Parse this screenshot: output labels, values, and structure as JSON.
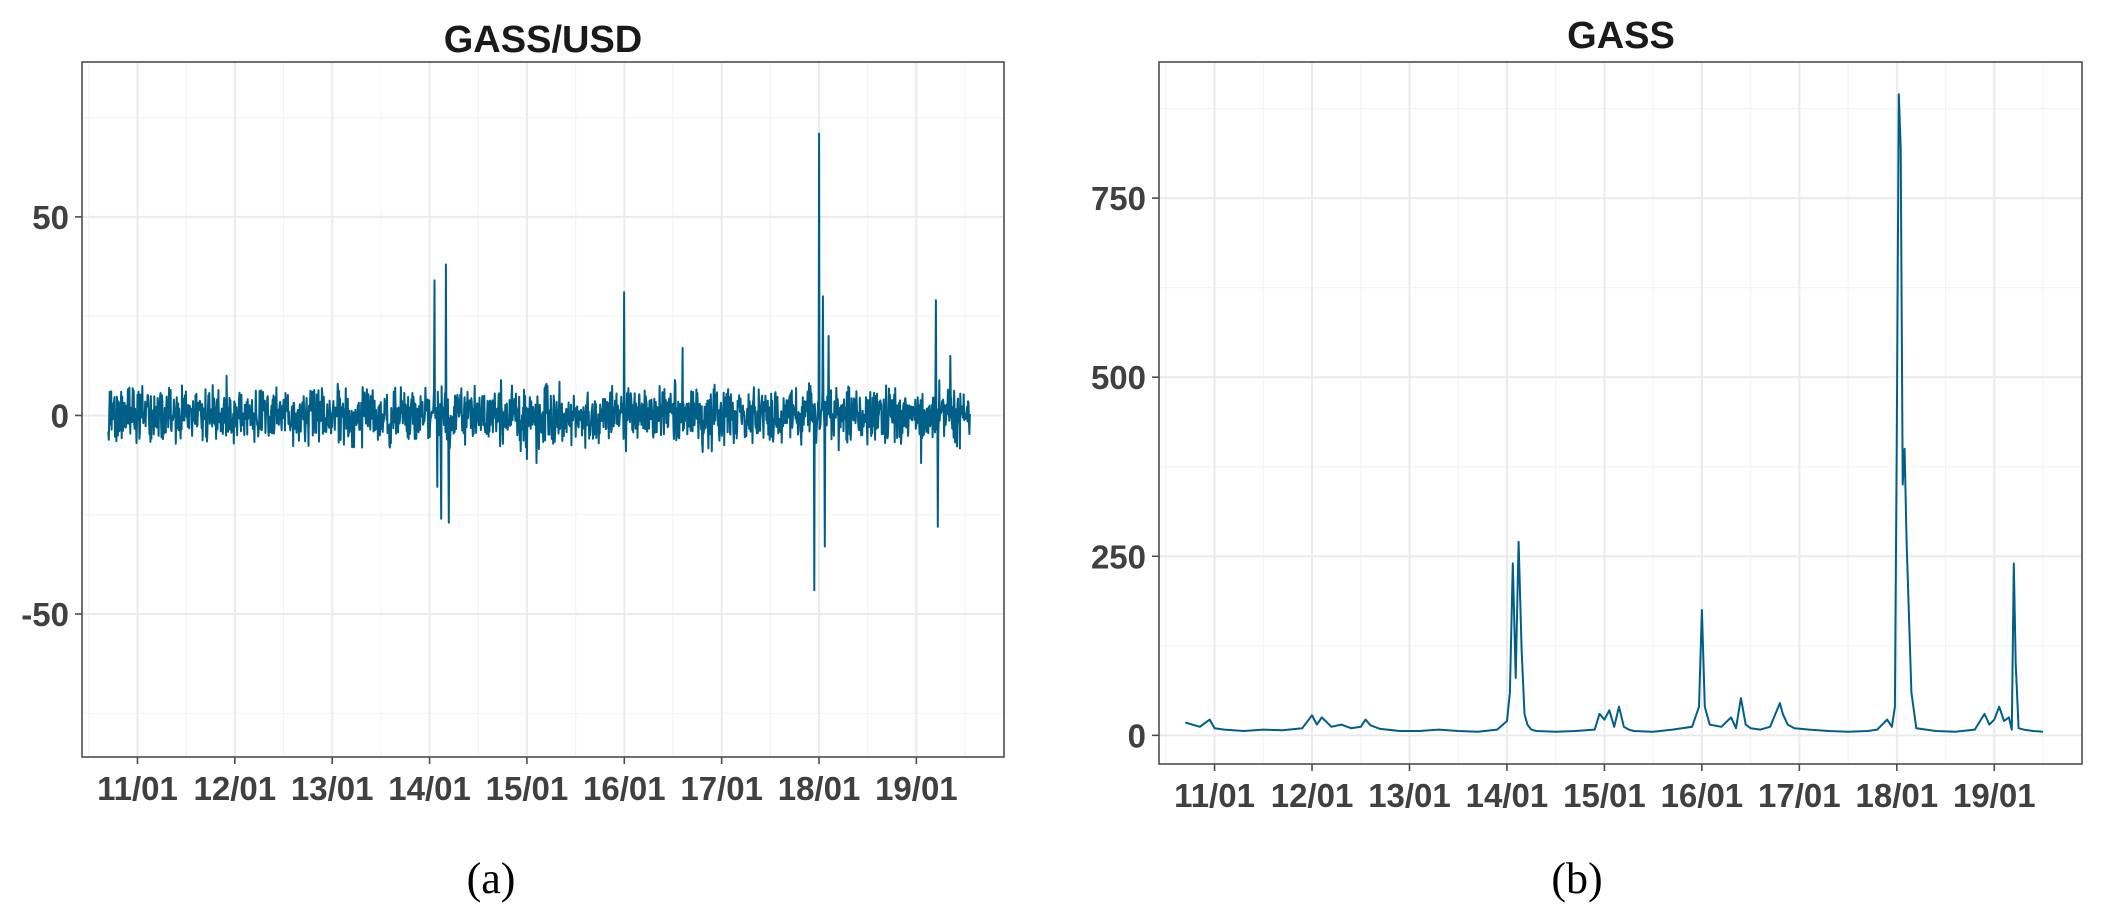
{
  "figure": {
    "caption_a": "(a)",
    "caption_b": "(b)"
  },
  "chart_data": [
    {
      "type": "line",
      "title": "GASS/USD",
      "xlabel": "",
      "ylabel": "",
      "color": "#005f87",
      "grid": true,
      "x_ticks": [
        "11/01",
        "12/01",
        "13/01",
        "14/01",
        "15/01",
        "16/01",
        "17/01",
        "18/01",
        "19/01"
      ],
      "y_ticks": [
        -50,
        0,
        50
      ],
      "xlim": [
        10.43,
        19.9
      ],
      "ylim": [
        -86,
        89
      ],
      "x_range": [
        10.7,
        19.55
      ],
      "baseline_noise": 3.5,
      "spikes": [
        {
          "x": 14.05,
          "y": 34
        },
        {
          "x": 14.08,
          "y": -18
        },
        {
          "x": 14.12,
          "y": -26
        },
        {
          "x": 14.17,
          "y": 38
        },
        {
          "x": 14.2,
          "y": -27
        },
        {
          "x": 15.0,
          "y": -11
        },
        {
          "x": 15.1,
          "y": -12
        },
        {
          "x": 15.2,
          "y": 8
        },
        {
          "x": 16.0,
          "y": 31
        },
        {
          "x": 16.02,
          "y": -9
        },
        {
          "x": 16.6,
          "y": 17
        },
        {
          "x": 16.9,
          "y": -9
        },
        {
          "x": 17.95,
          "y": -44
        },
        {
          "x": 18.0,
          "y": 71
        },
        {
          "x": 18.04,
          "y": 30
        },
        {
          "x": 18.06,
          "y": -33
        },
        {
          "x": 18.1,
          "y": 20
        },
        {
          "x": 19.05,
          "y": -12
        },
        {
          "x": 19.2,
          "y": 29
        },
        {
          "x": 19.22,
          "y": -28
        },
        {
          "x": 19.35,
          "y": 15
        }
      ]
    },
    {
      "type": "line",
      "title": "GASS",
      "xlabel": "",
      "ylabel": "",
      "color": "#005f87",
      "grid": true,
      "x_ticks": [
        "11/01",
        "12/01",
        "13/01",
        "14/01",
        "15/01",
        "16/01",
        "17/01",
        "18/01",
        "19/01"
      ],
      "y_ticks": [
        0,
        250,
        500,
        750
      ],
      "xlim": [
        10.43,
        19.9
      ],
      "ylim": [
        -40,
        940
      ],
      "x": [
        10.7,
        10.85,
        10.95,
        11.0,
        11.1,
        11.3,
        11.5,
        11.7,
        11.9,
        12.0,
        12.05,
        12.1,
        12.2,
        12.3,
        12.4,
        12.5,
        12.55,
        12.6,
        12.7,
        12.9,
        13.1,
        13.3,
        13.5,
        13.7,
        13.9,
        14.0,
        14.03,
        14.06,
        14.09,
        14.12,
        14.15,
        14.18,
        14.21,
        14.25,
        14.3,
        14.5,
        14.7,
        14.9,
        14.95,
        15.0,
        15.05,
        15.1,
        15.15,
        15.2,
        15.25,
        15.3,
        15.5,
        15.7,
        15.9,
        15.97,
        16.0,
        16.03,
        16.08,
        16.2,
        16.3,
        16.35,
        16.4,
        16.45,
        16.5,
        16.6,
        16.7,
        16.8,
        16.83,
        16.88,
        16.95,
        17.1,
        17.3,
        17.5,
        17.7,
        17.8,
        17.9,
        17.95,
        17.98,
        18.0,
        18.02,
        18.04,
        18.06,
        18.08,
        18.1,
        18.15,
        18.2,
        18.4,
        18.6,
        18.8,
        18.9,
        18.95,
        19.0,
        19.05,
        19.1,
        19.15,
        19.18,
        19.2,
        19.22,
        19.25,
        19.3,
        19.4,
        19.5
      ],
      "y": [
        18,
        12,
        22,
        10,
        8,
        6,
        8,
        7,
        10,
        28,
        15,
        25,
        12,
        15,
        10,
        12,
        22,
        14,
        9,
        6,
        6,
        8,
        6,
        5,
        8,
        20,
        60,
        240,
        80,
        270,
        120,
        30,
        15,
        8,
        6,
        5,
        6,
        8,
        30,
        22,
        35,
        12,
        40,
        12,
        8,
        6,
        5,
        8,
        12,
        40,
        175,
        40,
        15,
        12,
        25,
        10,
        52,
        15,
        10,
        8,
        12,
        45,
        30,
        15,
        10,
        8,
        6,
        5,
        6,
        8,
        22,
        12,
        40,
        420,
        895,
        820,
        350,
        400,
        270,
        60,
        10,
        6,
        5,
        8,
        30,
        15,
        22,
        40,
        20,
        25,
        8,
        240,
        100,
        10,
        8,
        6,
        5
      ]
    }
  ]
}
